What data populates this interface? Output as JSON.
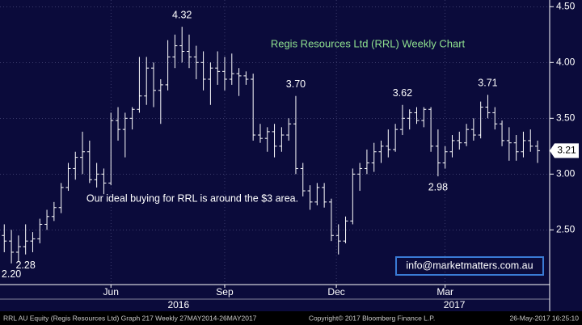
{
  "chart_data": {
    "type": "ohlc",
    "title": "Regis Resources Ltd (RRL) Weekly Chart",
    "note": "Our ideal buying for RRL is around the $3 area.",
    "link": "info@marketmatters.com.au",
    "footer_left": "RRL AU Equity (Regis Resources Ltd) Graph 217  Weekly 27MAY2014-26MAY2017",
    "footer_center": "Copyright© 2017 Bloomberg Finance L.P.",
    "footer_right": "26-May-2017 16:25:10",
    "color": "#ffffff",
    "background": "#0b0b3b",
    "grid": true,
    "ylim": [
      2.01,
      4.56
    ],
    "yticks": [
      {
        "value": 2.5,
        "label": "2.50"
      },
      {
        "value": 3.0,
        "label": "3.00"
      },
      {
        "value": 3.5,
        "label": "3.50"
      },
      {
        "value": 4.0,
        "label": "4.00"
      },
      {
        "value": 4.5,
        "label": "4.50"
      }
    ],
    "xlim": [
      -0.6,
      76.7
    ],
    "xticks": [
      {
        "value": 15,
        "label": "Jun"
      },
      {
        "value": 31,
        "label": "Sep"
      },
      {
        "value": 46.7,
        "label": "Dec"
      },
      {
        "value": 62,
        "label": "Mar"
      }
    ],
    "year_ticks": [
      {
        "value": 24.5,
        "label": "2016"
      },
      {
        "value": 63.3,
        "label": "2017"
      }
    ],
    "annotations": [
      {
        "value": 2.2,
        "label": "2.20"
      },
      {
        "value": 4.32,
        "label": "4.32"
      },
      {
        "value": 3.7,
        "label": "3.70"
      },
      {
        "value": 2.28,
        "label": "2.28"
      },
      {
        "value": 3.62,
        "label": "3.62"
      },
      {
        "value": 2.98,
        "label": "2.98"
      },
      {
        "value": 3.71,
        "label": "3.71"
      }
    ],
    "open": [
      2.45,
      2.4,
      2.3,
      2.35,
      2.4,
      2.42,
      2.55,
      2.62,
      2.7,
      2.88,
      3.05,
      3.15,
      3.2,
      2.95,
      3.0,
      2.92,
      3.48,
      3.4,
      3.5,
      3.58,
      3.7,
      3.95,
      3.75,
      3.8,
      4.05,
      4.15,
      4.1,
      4.05,
      4.0,
      3.85,
      3.95,
      3.92,
      3.85,
      3.9,
      3.88,
      3.85,
      3.35,
      3.32,
      3.38,
      3.25,
      3.35,
      3.45,
      3.05,
      2.85,
      2.75,
      2.88,
      2.75,
      2.45,
      2.4,
      2.58,
      3.0,
      3.05,
      3.1,
      3.2,
      3.25,
      3.22,
      3.4,
      3.5,
      3.55,
      3.48,
      3.58,
      3.25,
      3.1,
      3.2,
      3.3,
      3.28,
      3.4,
      3.35,
      3.6,
      3.55,
      3.45,
      3.3,
      3.28,
      3.2,
      3.3,
      3.25
    ],
    "high": [
      2.55,
      2.5,
      2.45,
      2.55,
      2.48,
      2.6,
      2.68,
      2.75,
      2.92,
      3.1,
      3.2,
      3.38,
      3.3,
      3.1,
      3.05,
      3.55,
      3.6,
      3.55,
      3.6,
      4.05,
      4.05,
      4.0,
      3.85,
      4.2,
      4.25,
      4.32,
      4.25,
      4.15,
      4.1,
      4.0,
      4.1,
      4.05,
      4.08,
      3.95,
      3.92,
      3.9,
      3.45,
      3.42,
      3.45,
      3.42,
      3.5,
      3.7,
      3.1,
      2.9,
      2.92,
      2.92,
      2.78,
      2.55,
      2.62,
      3.05,
      3.1,
      3.22,
      3.28,
      3.3,
      3.4,
      3.45,
      3.62,
      3.58,
      3.6,
      3.6,
      3.6,
      3.4,
      3.25,
      3.35,
      3.38,
      3.45,
      3.5,
      3.65,
      3.71,
      3.6,
      3.48,
      3.42,
      3.35,
      3.38,
      3.4,
      3.3
    ],
    "low": [
      2.3,
      2.2,
      2.22,
      2.28,
      2.3,
      2.38,
      2.5,
      2.58,
      2.65,
      2.85,
      2.95,
      3.0,
      2.92,
      2.88,
      2.82,
      2.9,
      3.3,
      3.15,
      3.4,
      3.55,
      3.62,
      3.6,
      3.45,
      3.75,
      3.95,
      4.0,
      3.95,
      3.85,
      3.75,
      3.62,
      3.8,
      3.75,
      3.8,
      3.7,
      3.8,
      3.3,
      3.28,
      3.2,
      3.15,
      3.2,
      3.3,
      3.0,
      2.8,
      2.68,
      2.72,
      2.7,
      2.4,
      2.28,
      2.38,
      2.55,
      2.85,
      3.0,
      3.02,
      3.1,
      3.15,
      3.2,
      3.35,
      3.4,
      3.45,
      3.42,
      3.2,
      2.98,
      3.05,
      3.15,
      3.22,
      3.25,
      3.3,
      3.32,
      3.5,
      3.4,
      3.25,
      3.12,
      3.12,
      3.15,
      3.2,
      3.1
    ],
    "close": [
      2.4,
      2.3,
      2.35,
      2.4,
      2.42,
      2.55,
      2.62,
      2.7,
      2.88,
      3.05,
      3.15,
      3.2,
      2.95,
      3.0,
      2.92,
      3.48,
      3.4,
      3.5,
      3.58,
      3.7,
      3.95,
      3.75,
      3.8,
      4.05,
      4.15,
      4.1,
      4.05,
      4.0,
      3.85,
      3.95,
      3.92,
      3.85,
      3.9,
      3.88,
      3.85,
      3.35,
      3.32,
      3.38,
      3.25,
      3.35,
      3.45,
      3.05,
      2.85,
      2.75,
      2.88,
      2.75,
      2.45,
      2.4,
      2.58,
      3.0,
      3.05,
      3.1,
      3.2,
      3.25,
      3.22,
      3.4,
      3.5,
      3.55,
      3.48,
      3.58,
      3.25,
      3.1,
      3.2,
      3.3,
      3.28,
      3.4,
      3.35,
      3.6,
      3.55,
      3.45,
      3.3,
      3.28,
      3.2,
      3.3,
      3.25,
      3.21
    ]
  }
}
